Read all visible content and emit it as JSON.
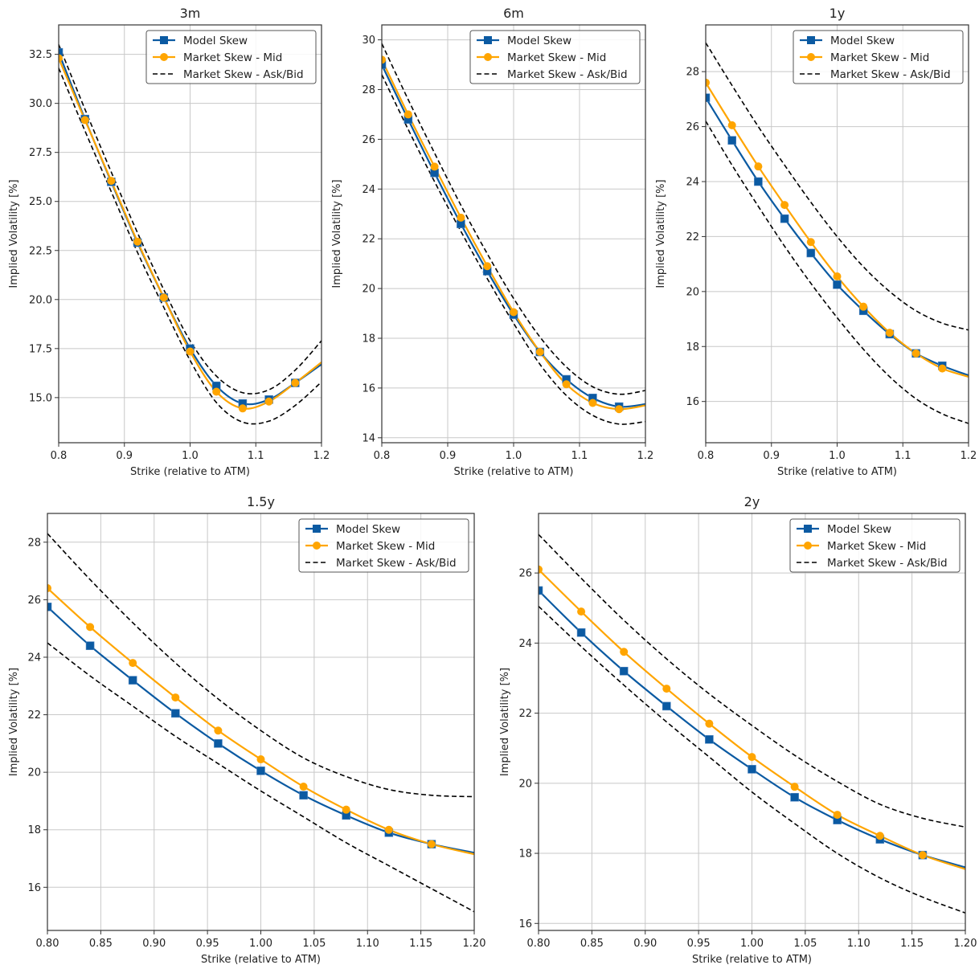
{
  "chart_data": [
    {
      "type": "line",
      "title": "3m",
      "xlabel": "Strike (relative to ATM)",
      "ylabel": "Implied Volatility [%]",
      "xlim": [
        0.8,
        1.2
      ],
      "ylim": [
        12.7,
        34.0
      ],
      "xticks": [
        0.8,
        0.9,
        1.0,
        1.1,
        1.2
      ],
      "xtick_labels": [
        "0.8",
        "0.9",
        "1.0",
        "1.1",
        "1.2"
      ],
      "yticks": [
        15.0,
        17.5,
        20.0,
        22.5,
        25.0,
        27.5,
        30.0,
        32.5
      ],
      "ytick_labels": [
        "15.0",
        "17.5",
        "20.0",
        "22.5",
        "25.0",
        "27.5",
        "30.0",
        "32.5"
      ],
      "grid": true,
      "legend_position": "top-right",
      "x": [
        0.8,
        0.84,
        0.88,
        0.92,
        0.96,
        1.0,
        1.04,
        1.08,
        1.12,
        1.16,
        1.2
      ],
      "series": [
        {
          "name": "Model Skew",
          "style": "solid-square",
          "color": "#0b5aa2",
          "values": [
            32.6,
            29.2,
            26.0,
            22.9,
            20.1,
            17.5,
            15.6,
            14.7,
            14.9,
            15.75,
            16.7
          ]
        },
        {
          "name": "Market Skew - Mid",
          "style": "solid-circle",
          "color": "#ffa500",
          "values": [
            32.3,
            29.15,
            26.05,
            22.95,
            20.1,
            17.35,
            15.3,
            14.45,
            14.8,
            15.75,
            16.8
          ]
        },
        {
          "name": "Market Skew - Ask/Bid",
          "style": "dashed",
          "color": "#000000",
          "role": "ask",
          "values": [
            33.0,
            29.7,
            26.5,
            23.4,
            20.5,
            17.9,
            16.1,
            15.25,
            15.4,
            16.4,
            17.9
          ]
        },
        {
          "name": "Market Skew - Ask/Bid",
          "style": "dashed",
          "color": "#000000",
          "role": "bid",
          "values": [
            31.8,
            28.6,
            25.5,
            22.4,
            19.6,
            16.9,
            14.75,
            13.75,
            13.8,
            14.6,
            15.8
          ]
        }
      ]
    },
    {
      "type": "line",
      "title": "6m",
      "xlabel": "Strike (relative to ATM)",
      "ylabel": "Implied Volatility [%]",
      "xlim": [
        0.8,
        1.2
      ],
      "ylim": [
        13.8,
        30.6
      ],
      "xticks": [
        0.8,
        0.9,
        1.0,
        1.1,
        1.2
      ],
      "xtick_labels": [
        "0.8",
        "0.9",
        "1.0",
        "1.1",
        "1.2"
      ],
      "yticks": [
        14,
        16,
        18,
        20,
        22,
        24,
        26,
        28,
        30
      ],
      "ytick_labels": [
        "14",
        "16",
        "18",
        "20",
        "22",
        "24",
        "26",
        "28",
        "30"
      ],
      "grid": true,
      "legend_position": "top-right",
      "x": [
        0.8,
        0.84,
        0.88,
        0.92,
        0.96,
        1.0,
        1.04,
        1.08,
        1.12,
        1.16,
        1.2
      ],
      "series": [
        {
          "name": "Model Skew",
          "style": "solid-square",
          "color": "#0b5aa2",
          "values": [
            29.0,
            26.8,
            24.65,
            22.6,
            20.7,
            18.95,
            17.45,
            16.35,
            15.6,
            15.25,
            15.35
          ]
        },
        {
          "name": "Market Skew - Mid",
          "style": "solid-circle",
          "color": "#ffa500",
          "values": [
            29.2,
            27.0,
            24.9,
            22.85,
            20.9,
            19.05,
            17.45,
            16.15,
            15.4,
            15.15,
            15.3
          ]
        },
        {
          "name": "Market Skew - Ask/Bid",
          "style": "dashed",
          "color": "#000000",
          "role": "ask",
          "values": [
            29.85,
            27.6,
            25.45,
            23.35,
            21.4,
            19.6,
            18.05,
            16.85,
            16.05,
            15.75,
            15.9
          ]
        },
        {
          "name": "Market Skew - Ask/Bid",
          "style": "dashed",
          "color": "#000000",
          "role": "bid",
          "values": [
            28.6,
            26.4,
            24.3,
            22.3,
            20.4,
            18.6,
            16.95,
            15.7,
            14.9,
            14.55,
            14.65
          ]
        }
      ]
    },
    {
      "type": "line",
      "title": "1y",
      "xlabel": "Strike (relative to ATM)",
      "ylabel": "Implied Volatility [%]",
      "xlim": [
        0.8,
        1.2
      ],
      "ylim": [
        14.5,
        29.7
      ],
      "xticks": [
        0.8,
        0.9,
        1.0,
        1.1,
        1.2
      ],
      "xtick_labels": [
        "0.8",
        "0.9",
        "1.0",
        "1.1",
        "1.2"
      ],
      "yticks": [
        16,
        18,
        20,
        22,
        24,
        26,
        28
      ],
      "ytick_labels": [
        "16",
        "18",
        "20",
        "22",
        "24",
        "26",
        "28"
      ],
      "grid": true,
      "legend_position": "top-right",
      "x": [
        0.8,
        0.84,
        0.88,
        0.92,
        0.96,
        1.0,
        1.04,
        1.08,
        1.12,
        1.16,
        1.2
      ],
      "series": [
        {
          "name": "Model Skew",
          "style": "solid-square",
          "color": "#0b5aa2",
          "values": [
            27.05,
            25.5,
            24.0,
            22.65,
            21.4,
            20.25,
            19.3,
            18.45,
            17.75,
            17.3,
            16.95
          ]
        },
        {
          "name": "Market Skew - Mid",
          "style": "solid-circle",
          "color": "#ffa500",
          "values": [
            27.6,
            26.05,
            24.55,
            23.15,
            21.8,
            20.55,
            19.45,
            18.5,
            17.75,
            17.2,
            16.9
          ]
        },
        {
          "name": "Market Skew - Ask/Bid",
          "style": "dashed",
          "color": "#000000",
          "role": "ask",
          "values": [
            29.05,
            27.5,
            26.0,
            24.6,
            23.25,
            22.0,
            20.9,
            20.0,
            19.3,
            18.85,
            18.6
          ]
        },
        {
          "name": "Market Skew - Ask/Bid",
          "style": "dashed",
          "color": "#000000",
          "role": "bid",
          "values": [
            26.2,
            24.6,
            23.1,
            21.65,
            20.3,
            19.05,
            17.9,
            16.9,
            16.1,
            15.55,
            15.2
          ]
        }
      ]
    },
    {
      "type": "line",
      "title": "1.5y",
      "xlabel": "Strike (relative to ATM)",
      "ylabel": "Implied Volatility [%]",
      "xlim": [
        0.8,
        1.2
      ],
      "ylim": [
        14.5,
        29.0
      ],
      "xticks": [
        0.8,
        0.85,
        0.9,
        0.95,
        1.0,
        1.05,
        1.1,
        1.15,
        1.2
      ],
      "xtick_labels": [
        "0.80",
        "0.85",
        "0.90",
        "0.95",
        "1.00",
        "1.05",
        "1.10",
        "1.15",
        "1.20"
      ],
      "yticks": [
        16,
        18,
        20,
        22,
        24,
        26,
        28
      ],
      "ytick_labels": [
        "16",
        "18",
        "20",
        "22",
        "24",
        "26",
        "28"
      ],
      "grid": true,
      "legend_position": "top-right",
      "x": [
        0.8,
        0.84,
        0.88,
        0.92,
        0.96,
        1.0,
        1.04,
        1.08,
        1.12,
        1.16,
        1.2
      ],
      "series": [
        {
          "name": "Model Skew",
          "style": "solid-square",
          "color": "#0b5aa2",
          "values": [
            25.75,
            24.4,
            23.2,
            22.05,
            21.0,
            20.05,
            19.2,
            18.5,
            17.9,
            17.5,
            17.2
          ]
        },
        {
          "name": "Market Skew - Mid",
          "style": "solid-circle",
          "color": "#ffa500",
          "values": [
            26.4,
            25.05,
            23.8,
            22.6,
            21.45,
            20.45,
            19.5,
            18.7,
            18.0,
            17.5,
            17.15
          ]
        },
        {
          "name": "Market Skew - Ask/Bid",
          "style": "dashed",
          "color": "#000000",
          "role": "ask",
          "values": [
            28.3,
            26.7,
            25.2,
            23.8,
            22.55,
            21.45,
            20.5,
            19.85,
            19.4,
            19.2,
            19.15
          ]
        },
        {
          "name": "Market Skew - Ask/Bid",
          "style": "dashed",
          "color": "#000000",
          "role": "bid",
          "values": [
            24.5,
            23.35,
            22.3,
            21.25,
            20.3,
            19.35,
            18.45,
            17.55,
            16.75,
            15.95,
            15.15
          ]
        }
      ]
    },
    {
      "type": "line",
      "title": "2y",
      "xlabel": "Strike (relative to ATM)",
      "ylabel": "Implied Volatility [%]",
      "xlim": [
        0.8,
        1.2
      ],
      "ylim": [
        15.8,
        27.7
      ],
      "xticks": [
        0.8,
        0.85,
        0.9,
        0.95,
        1.0,
        1.05,
        1.1,
        1.15,
        1.2
      ],
      "xtick_labels": [
        "0.80",
        "0.85",
        "0.90",
        "0.95",
        "1.00",
        "1.05",
        "1.10",
        "1.15",
        "1.20"
      ],
      "yticks": [
        16,
        18,
        20,
        22,
        24,
        26
      ],
      "ytick_labels": [
        "16",
        "18",
        "20",
        "22",
        "24",
        "26"
      ],
      "grid": true,
      "legend_position": "top-right",
      "x": [
        0.8,
        0.84,
        0.88,
        0.92,
        0.96,
        1.0,
        1.04,
        1.08,
        1.12,
        1.16,
        1.2
      ],
      "series": [
        {
          "name": "Model Skew",
          "style": "solid-square",
          "color": "#0b5aa2",
          "values": [
            25.5,
            24.3,
            23.2,
            22.2,
            21.25,
            20.4,
            19.6,
            18.95,
            18.4,
            17.95,
            17.6
          ]
        },
        {
          "name": "Market Skew - Mid",
          "style": "solid-circle",
          "color": "#ffa500",
          "values": [
            26.1,
            24.9,
            23.75,
            22.7,
            21.7,
            20.75,
            19.9,
            19.1,
            18.5,
            17.95,
            17.55
          ]
        },
        {
          "name": "Market Skew - Ask/Bid",
          "style": "dashed",
          "color": "#000000",
          "role": "ask",
          "values": [
            27.1,
            25.85,
            24.65,
            23.55,
            22.55,
            21.65,
            20.8,
            20.05,
            19.4,
            19.0,
            18.75
          ]
        },
        {
          "name": "Market Skew - Ask/Bid",
          "style": "dashed",
          "color": "#000000",
          "role": "bid",
          "values": [
            25.05,
            23.9,
            22.8,
            21.75,
            20.75,
            19.75,
            18.85,
            18.0,
            17.3,
            16.75,
            16.3
          ]
        }
      ]
    }
  ],
  "legend": {
    "items": [
      {
        "label": "Model Skew",
        "marker": "square",
        "color": "#0b5aa2",
        "dash": false
      },
      {
        "label": "Market Skew - Mid",
        "marker": "circle",
        "color": "#ffa500",
        "dash": false
      },
      {
        "label": "Market Skew - Ask/Bid",
        "marker": "none",
        "color": "#000000",
        "dash": true
      }
    ]
  },
  "marker_count": 10
}
